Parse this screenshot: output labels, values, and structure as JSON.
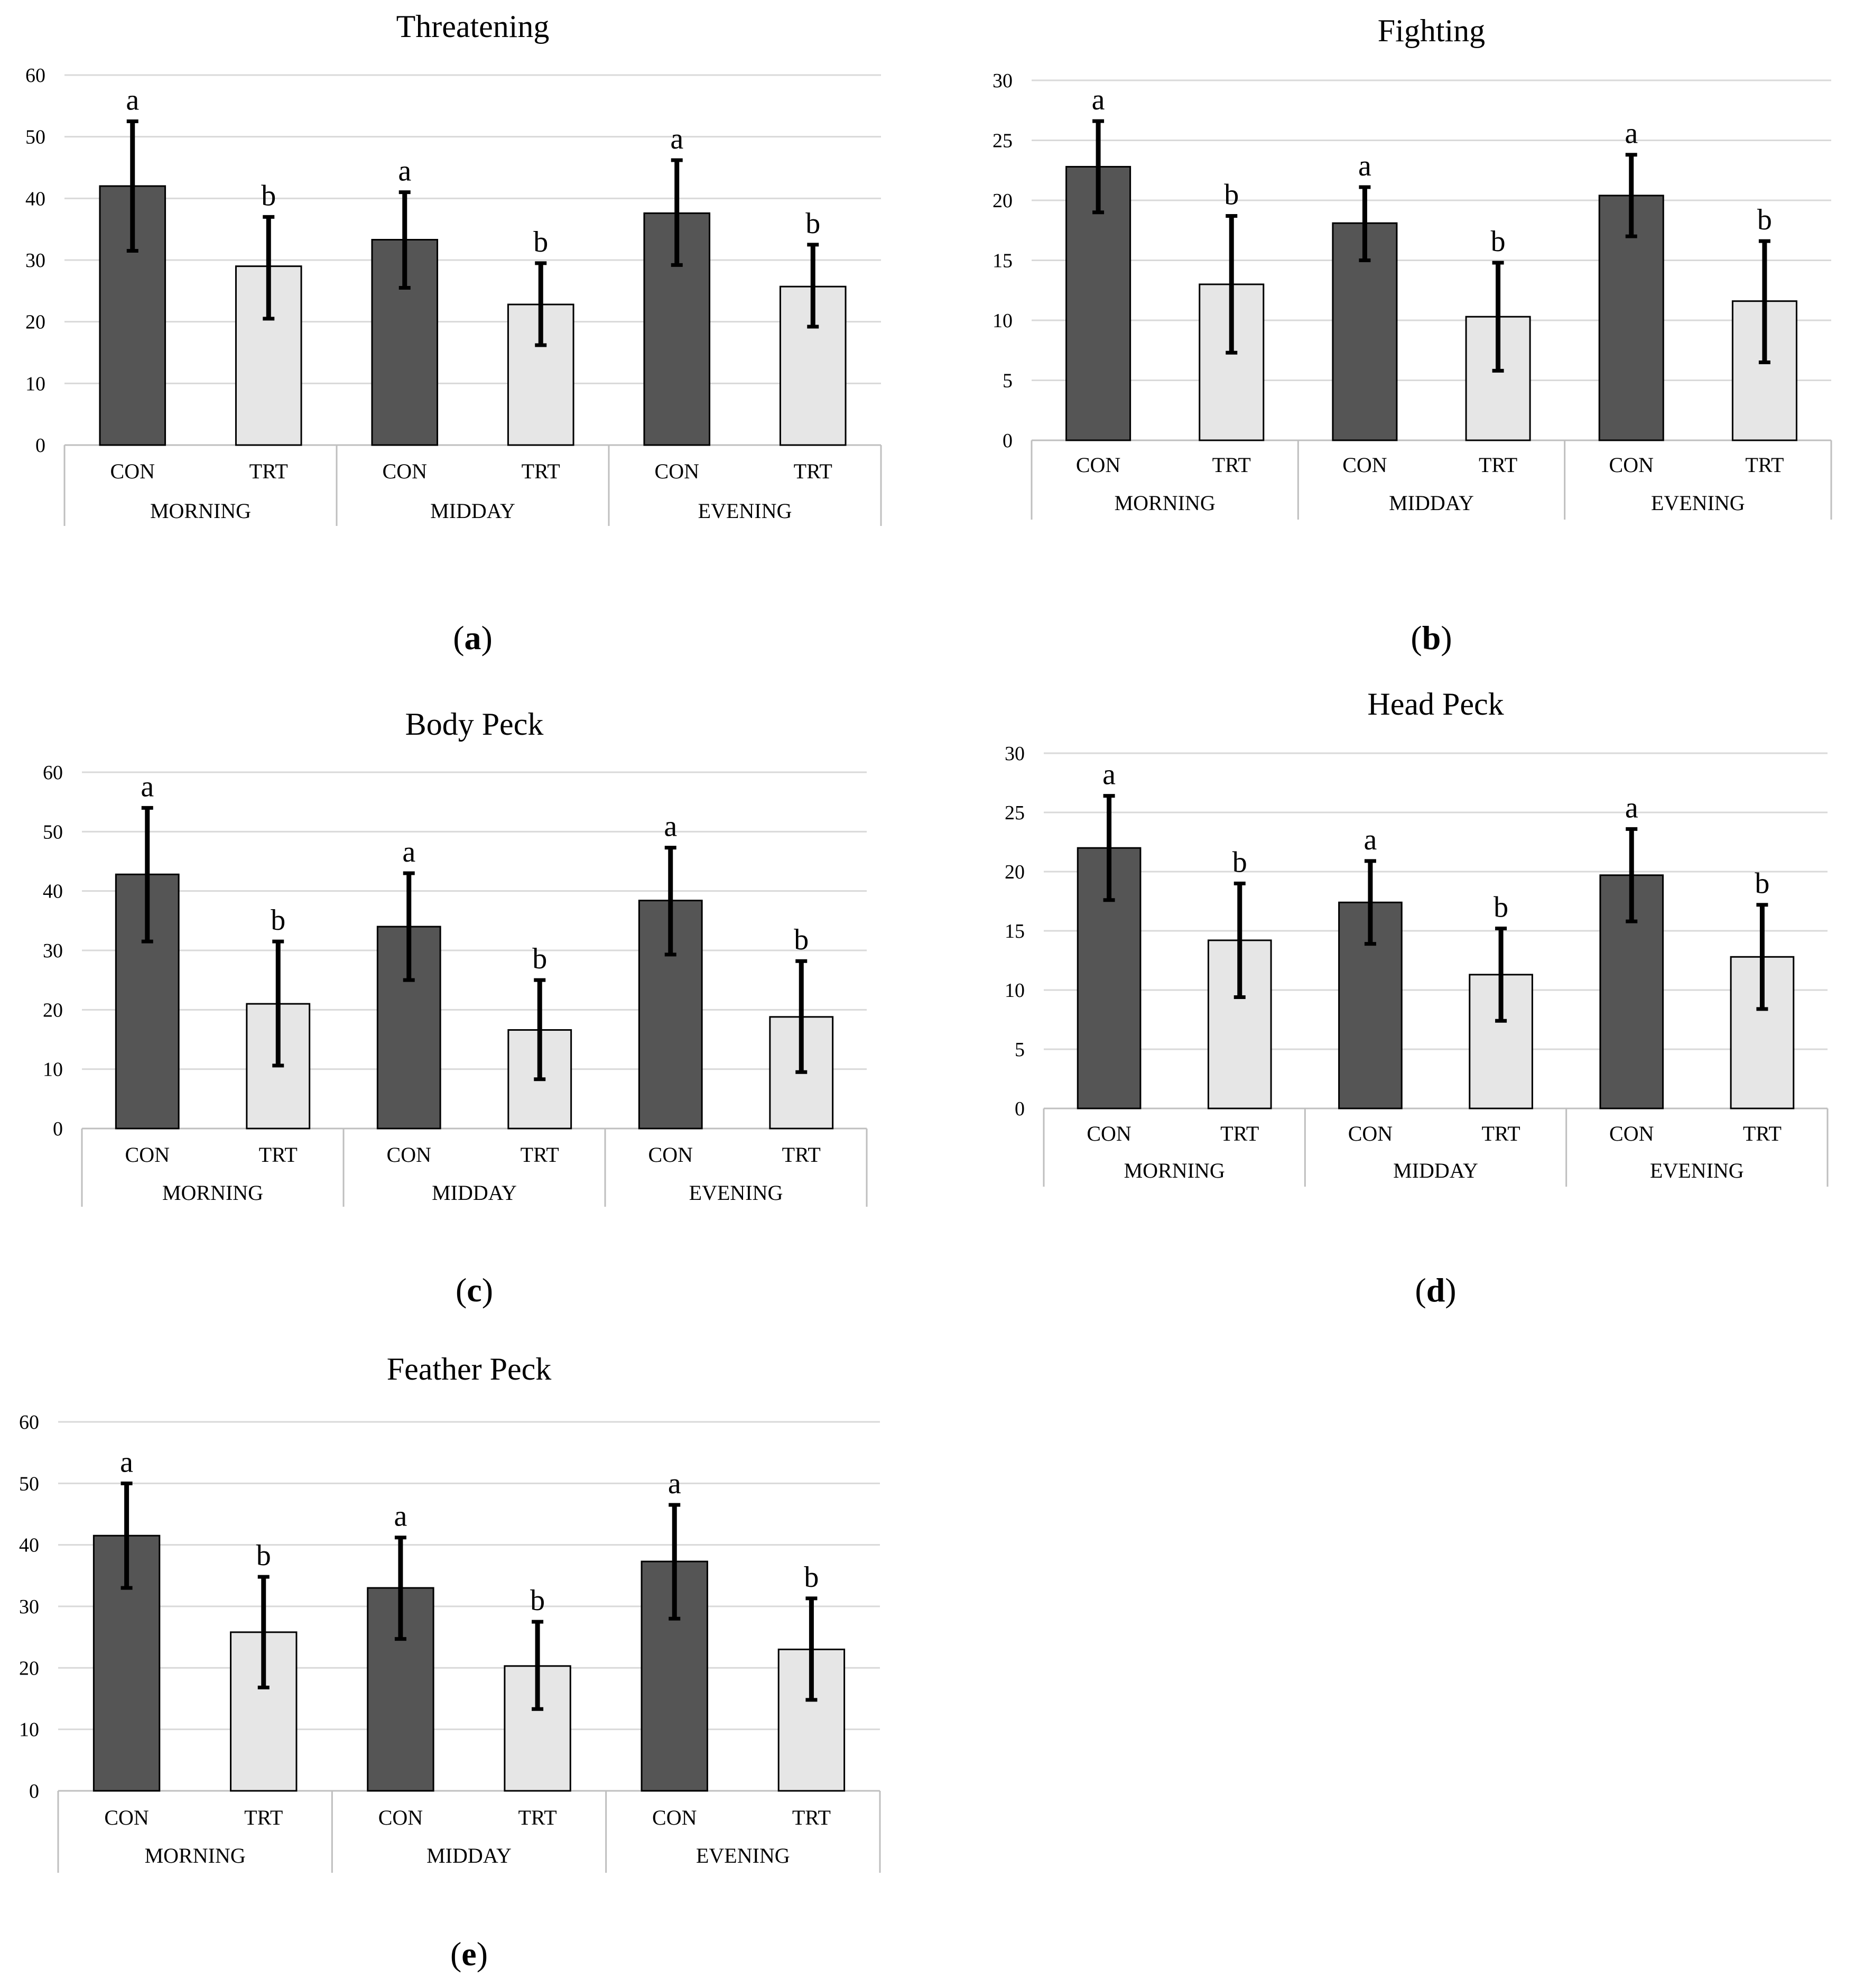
{
  "figure": {
    "bar_colors": {
      "CON": "#555555",
      "TRT": "#e6e6e6"
    },
    "bar_stroke": "#000000",
    "error_bar_color": "#000000",
    "grid_color": "#d9d9d9"
  },
  "chart_data": [
    {
      "id": "a",
      "type": "bar",
      "title": "Threatening",
      "caption": "a",
      "ylim": [
        0,
        60
      ],
      "yticks": [
        0,
        10,
        20,
        30,
        40,
        50,
        60
      ],
      "groups": [
        "MORNING",
        "MIDDAY",
        "EVENING"
      ],
      "categories": [
        "CON",
        "TRT"
      ],
      "bars": [
        {
          "group": "MORNING",
          "category": "CON",
          "value": 42,
          "err_low": 31.5,
          "err_high": 52.5,
          "sig": "a"
        },
        {
          "group": "MORNING",
          "category": "TRT",
          "value": 29,
          "err_low": 20.5,
          "err_high": 37,
          "sig": "b"
        },
        {
          "group": "MIDDAY",
          "category": "CON",
          "value": 33.3,
          "err_low": 25.5,
          "err_high": 41,
          "sig": "a"
        },
        {
          "group": "MIDDAY",
          "category": "TRT",
          "value": 22.8,
          "err_low": 16.2,
          "err_high": 29.5,
          "sig": "b"
        },
        {
          "group": "EVENING",
          "category": "CON",
          "value": 37.6,
          "err_low": 29.2,
          "err_high": 46.2,
          "sig": "a"
        },
        {
          "group": "EVENING",
          "category": "TRT",
          "value": 25.7,
          "err_low": 19.2,
          "err_high": 32.5,
          "sig": "b"
        }
      ]
    },
    {
      "id": "b",
      "type": "bar",
      "title": "Fighting",
      "caption": "b",
      "ylim": [
        0,
        30
      ],
      "yticks": [
        0,
        5,
        10,
        15,
        20,
        25,
        30
      ],
      "groups": [
        "MORNING",
        "MIDDAY",
        "EVENING"
      ],
      "categories": [
        "CON",
        "TRT"
      ],
      "bars": [
        {
          "group": "MORNING",
          "category": "CON",
          "value": 22.8,
          "err_low": 19,
          "err_high": 26.6,
          "sig": "a"
        },
        {
          "group": "MORNING",
          "category": "TRT",
          "value": 13,
          "err_low": 7.3,
          "err_high": 18.7,
          "sig": "b"
        },
        {
          "group": "MIDDAY",
          "category": "CON",
          "value": 18.1,
          "err_low": 15,
          "err_high": 21.1,
          "sig": "a"
        },
        {
          "group": "MIDDAY",
          "category": "TRT",
          "value": 10.3,
          "err_low": 5.8,
          "err_high": 14.8,
          "sig": "b"
        },
        {
          "group": "EVENING",
          "category": "CON",
          "value": 20.4,
          "err_low": 17,
          "err_high": 23.8,
          "sig": "a"
        },
        {
          "group": "EVENING",
          "category": "TRT",
          "value": 11.6,
          "err_low": 6.5,
          "err_high": 16.6,
          "sig": "b"
        }
      ]
    },
    {
      "id": "c",
      "type": "bar",
      "title": "Body Peck",
      "caption": "c",
      "ylim": [
        0,
        60
      ],
      "yticks": [
        0,
        10,
        20,
        30,
        40,
        50,
        60
      ],
      "groups": [
        "MORNING",
        "MIDDAY",
        "EVENING"
      ],
      "categories": [
        "CON",
        "TRT"
      ],
      "bars": [
        {
          "group": "MORNING",
          "category": "CON",
          "value": 42.8,
          "err_low": 31.5,
          "err_high": 54,
          "sig": "a"
        },
        {
          "group": "MORNING",
          "category": "TRT",
          "value": 21,
          "err_low": 10.6,
          "err_high": 31.5,
          "sig": "b"
        },
        {
          "group": "MIDDAY",
          "category": "CON",
          "value": 34,
          "err_low": 25,
          "err_high": 43,
          "sig": "a"
        },
        {
          "group": "MIDDAY",
          "category": "TRT",
          "value": 16.6,
          "err_low": 8.3,
          "err_high": 25,
          "sig": "b"
        },
        {
          "group": "EVENING",
          "category": "CON",
          "value": 38.4,
          "err_low": 29.3,
          "err_high": 47.3,
          "sig": "a"
        },
        {
          "group": "EVENING",
          "category": "TRT",
          "value": 18.8,
          "err_low": 9.5,
          "err_high": 28.2,
          "sig": "b"
        }
      ]
    },
    {
      "id": "d",
      "type": "bar",
      "title": "Head Peck",
      "caption": "d",
      "ylim": [
        0,
        30
      ],
      "yticks": [
        0,
        5,
        10,
        15,
        20,
        25,
        30
      ],
      "groups": [
        "MORNING",
        "MIDDAY",
        "EVENING"
      ],
      "categories": [
        "CON",
        "TRT"
      ],
      "bars": [
        {
          "group": "MORNING",
          "category": "CON",
          "value": 22,
          "err_low": 17.6,
          "err_high": 26.4,
          "sig": "a"
        },
        {
          "group": "MORNING",
          "category": "TRT",
          "value": 14.2,
          "err_low": 9.4,
          "err_high": 19,
          "sig": "b"
        },
        {
          "group": "MIDDAY",
          "category": "CON",
          "value": 17.4,
          "err_low": 13.9,
          "err_high": 20.9,
          "sig": "a"
        },
        {
          "group": "MIDDAY",
          "category": "TRT",
          "value": 11.3,
          "err_low": 7.4,
          "err_high": 15.2,
          "sig": "b"
        },
        {
          "group": "EVENING",
          "category": "CON",
          "value": 19.7,
          "err_low": 15.8,
          "err_high": 23.6,
          "sig": "a"
        },
        {
          "group": "EVENING",
          "category": "TRT",
          "value": 12.8,
          "err_low": 8.4,
          "err_high": 17.2,
          "sig": "b"
        }
      ]
    },
    {
      "id": "e",
      "type": "bar",
      "title": "Feather Peck",
      "caption": "e",
      "ylim": [
        0,
        60
      ],
      "yticks": [
        0,
        10,
        20,
        30,
        40,
        50,
        60
      ],
      "groups": [
        "MORNING",
        "MIDDAY",
        "EVENING"
      ],
      "categories": [
        "CON",
        "TRT"
      ],
      "bars": [
        {
          "group": "MORNING",
          "category": "CON",
          "value": 41.5,
          "err_low": 33,
          "err_high": 50,
          "sig": "a"
        },
        {
          "group": "MORNING",
          "category": "TRT",
          "value": 25.8,
          "err_low": 16.8,
          "err_high": 34.8,
          "sig": "b"
        },
        {
          "group": "MIDDAY",
          "category": "CON",
          "value": 33,
          "err_low": 24.7,
          "err_high": 41.2,
          "sig": "a"
        },
        {
          "group": "MIDDAY",
          "category": "TRT",
          "value": 20.3,
          "err_low": 13.3,
          "err_high": 27.5,
          "sig": "b"
        },
        {
          "group": "EVENING",
          "category": "CON",
          "value": 37.3,
          "err_low": 28,
          "err_high": 46.5,
          "sig": "a"
        },
        {
          "group": "EVENING",
          "category": "TRT",
          "value": 23,
          "err_low": 14.8,
          "err_high": 31.3,
          "sig": "b"
        }
      ]
    }
  ]
}
